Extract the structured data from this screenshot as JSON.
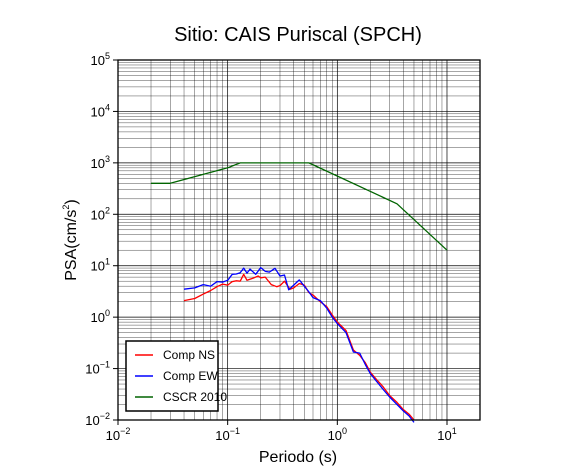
{
  "chart_data": {
    "type": "line",
    "title": "Sitio: CAIS Puriscal (SPCH)",
    "xlabel": "Periodo (s)",
    "ylabel_base": "PSA(cm/s",
    "ylabel_exp": "2",
    "ylabel_close": ")",
    "x_scale": "log",
    "y_scale": "log",
    "xlim": [
      0.01,
      20
    ],
    "ylim": [
      0.01,
      100000
    ],
    "grid": true,
    "legend_position": "bottom-left",
    "x_ticks": [
      {
        "base": "10",
        "exp": "−2",
        "value": 0.01
      },
      {
        "base": "10",
        "exp": "−1",
        "value": 0.1
      },
      {
        "base": "10",
        "exp": "0",
        "value": 1
      },
      {
        "base": "10",
        "exp": "1",
        "value": 10
      }
    ],
    "y_ticks": [
      {
        "base": "10",
        "exp": "−2",
        "value": 0.01
      },
      {
        "base": "10",
        "exp": "−1",
        "value": 0.1
      },
      {
        "base": "10",
        "exp": "0",
        "value": 1
      },
      {
        "base": "10",
        "exp": "1",
        "value": 10
      },
      {
        "base": "10",
        "exp": "2",
        "value": 100
      },
      {
        "base": "10",
        "exp": "3",
        "value": 1000
      },
      {
        "base": "10",
        "exp": "4",
        "value": 10000
      },
      {
        "base": "10",
        "exp": "5",
        "value": 100000
      }
    ],
    "series": [
      {
        "name": "Comp NS",
        "color": "#ff0000",
        "x": [
          0.04,
          0.05,
          0.06,
          0.07,
          0.08,
          0.09,
          0.1,
          0.11,
          0.12,
          0.13,
          0.14,
          0.15,
          0.17,
          0.19,
          0.2,
          0.22,
          0.25,
          0.28,
          0.3,
          0.33,
          0.37,
          0.4,
          0.45,
          0.5,
          0.55,
          0.6,
          0.7,
          0.8,
          0.9,
          1.0,
          1.2,
          1.4,
          1.6,
          1.8,
          2.0,
          2.3,
          2.6,
          3.0,
          3.5,
          4.0,
          4.5,
          5.0
        ],
        "y": [
          2.1,
          2.3,
          2.8,
          3.3,
          3.9,
          4.4,
          4.2,
          4.9,
          5.1,
          5.0,
          6.8,
          5.2,
          5.7,
          6.3,
          5.8,
          6.0,
          4.3,
          3.9,
          4.1,
          5.0,
          3.5,
          3.7,
          4.5,
          4.2,
          3.0,
          2.7,
          2.0,
          1.6,
          1.1,
          0.8,
          0.55,
          0.23,
          0.18,
          0.13,
          0.085,
          0.06,
          0.045,
          0.03,
          0.022,
          0.016,
          0.013,
          0.01
        ]
      },
      {
        "name": "Comp EW",
        "color": "#0000ff",
        "x": [
          0.04,
          0.05,
          0.06,
          0.07,
          0.08,
          0.09,
          0.1,
          0.11,
          0.12,
          0.13,
          0.14,
          0.15,
          0.16,
          0.18,
          0.2,
          0.22,
          0.24,
          0.27,
          0.3,
          0.33,
          0.36,
          0.4,
          0.45,
          0.5,
          0.55,
          0.6,
          0.7,
          0.8,
          0.9,
          1.0,
          1.2,
          1.4,
          1.6,
          1.8,
          2.0,
          2.3,
          2.6,
          3.0,
          3.5,
          4.0,
          4.5,
          5.0
        ],
        "y": [
          3.5,
          3.7,
          4.3,
          4.0,
          4.9,
          4.8,
          5.2,
          6.8,
          6.9,
          7.3,
          9.0,
          7.2,
          8.6,
          6.8,
          9.2,
          7.8,
          7.5,
          8.9,
          6.3,
          6.6,
          3.4,
          4.2,
          5.3,
          4.0,
          3.1,
          2.4,
          2.1,
          1.5,
          1.0,
          0.75,
          0.5,
          0.21,
          0.2,
          0.12,
          0.08,
          0.055,
          0.04,
          0.028,
          0.02,
          0.015,
          0.012,
          0.009
        ]
      },
      {
        "name": "CSCR 2010",
        "color": "#006400",
        "x": [
          0.02,
          0.03,
          0.1,
          0.13,
          0.55,
          3.5,
          10
        ],
        "y": [
          400,
          400,
          800,
          1000,
          1000,
          160,
          20
        ]
      }
    ]
  }
}
